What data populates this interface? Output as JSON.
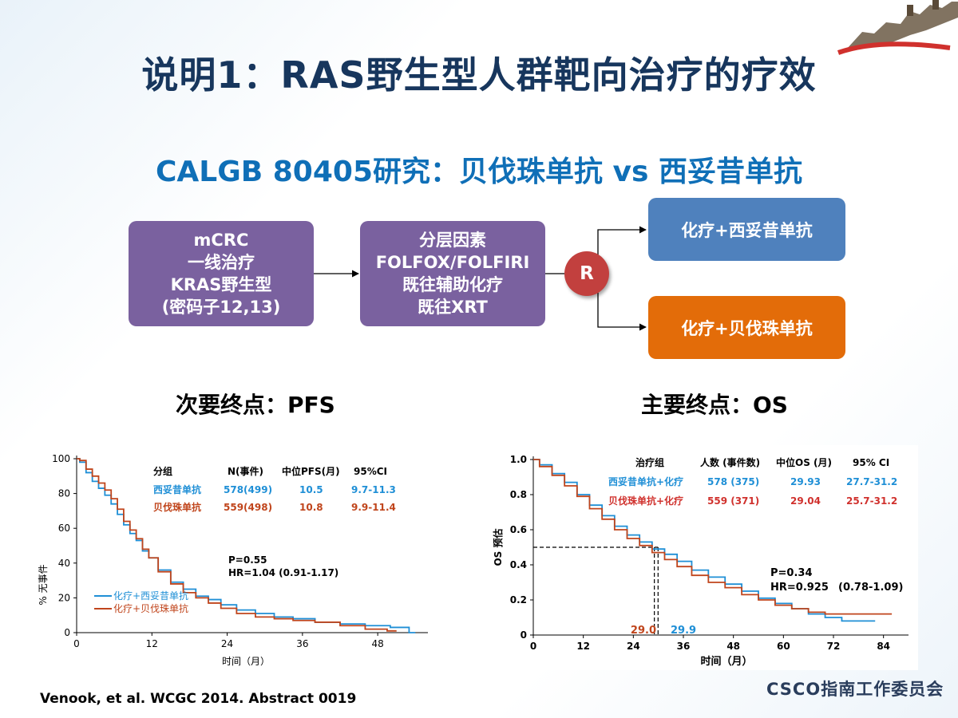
{
  "slide": {
    "title": "说明1：RAS野生型人群靶向治疗的疗效",
    "subtitle": "CALGB 80405研究：贝伐珠单抗 vs 西妥昔单抗",
    "citation": "Venook, et al. WCGC 2014. Abstract 0019",
    "footer_org": "CSCO指南工作委员会"
  },
  "flow": {
    "box1_lines": [
      "mCRC",
      "一线治疗",
      "KRAS野生型",
      "(密码子12,13)"
    ],
    "box2_lines": [
      "分层因素",
      "FOLFOX/FOLFIRI",
      "既往辅助化疗",
      "既往XRT"
    ],
    "randomize": "R",
    "arm1": "化疗+西妥昔单抗",
    "arm2": "化疗+贝伐珠单抗"
  },
  "colors": {
    "purple": "#7a619f",
    "blue_box": "#4f81bd",
    "orange_box": "#e36c09",
    "blue_line": "#1f8fd6",
    "red_line": "#c0451c",
    "title": "#17365d",
    "subtitle": "#0f6fb7"
  },
  "chart_data": [
    {
      "type": "line",
      "heading": "次要终点：PFS",
      "ylabel": "% 无事件",
      "xlabel": "时间（月）",
      "xlim": [
        0,
        56
      ],
      "ylim": [
        0,
        100
      ],
      "x_ticks": [
        0,
        12,
        24,
        36,
        48
      ],
      "y_ticks": [
        0,
        20,
        40,
        60,
        80,
        100
      ],
      "table": {
        "headers": [
          "分组",
          "N(事件)",
          "中位PFS(月)",
          "95%CI"
        ],
        "rows": [
          [
            "西妥昔单抗",
            "578(499)",
            "10.5",
            "9.7-11.3"
          ],
          [
            "贝伐珠单抗",
            "559(498)",
            "10.8",
            "9.9-11.4"
          ]
        ]
      },
      "stats": [
        "P=0.55",
        "HR=1.04 (0.91-1.17)"
      ],
      "series": [
        {
          "name": "化疗+西妥昔单抗",
          "x": [
            0,
            1,
            2,
            3,
            4,
            5,
            6,
            7,
            8,
            9,
            10,
            11,
            12,
            14,
            16,
            18,
            20,
            22,
            24,
            27,
            30,
            33,
            36,
            40,
            44,
            48,
            52,
            54
          ],
          "y": [
            100,
            98,
            92,
            87,
            83,
            79,
            74,
            68,
            62,
            57,
            53,
            47,
            43,
            36,
            29,
            25,
            21,
            19,
            16,
            13,
            11,
            9,
            8,
            6,
            5,
            4,
            3,
            0
          ]
        },
        {
          "name": "化疗+贝伐珠单抗",
          "x": [
            0,
            1,
            2,
            3,
            4,
            5,
            6,
            7,
            8,
            9,
            10,
            11,
            12,
            14,
            16,
            18,
            20,
            22,
            24,
            27,
            30,
            33,
            36,
            40,
            44,
            48,
            51
          ],
          "y": [
            100,
            99,
            94,
            90,
            86,
            82,
            77,
            71,
            64,
            59,
            54,
            48,
            43,
            35,
            28,
            23,
            20,
            17,
            14,
            11,
            9,
            8,
            7,
            6,
            4,
            2,
            1
          ]
        }
      ]
    },
    {
      "type": "line",
      "heading": "主要终点：OS",
      "ylabel": "OS 预估",
      "xlabel": "时间（月）",
      "xlim": [
        0,
        90
      ],
      "ylim": [
        0,
        1.0
      ],
      "x_ticks": [
        0,
        12,
        24,
        36,
        48,
        60,
        72,
        84
      ],
      "y_ticks": [
        0,
        0.2,
        0.4,
        0.6,
        0.8,
        1.0
      ],
      "table": {
        "headers": [
          "治疗组",
          "人数 (事件数)",
          "中位OS (月)",
          "95% CI"
        ],
        "rows": [
          [
            "西妥昔单抗+化疗",
            "578 (375)",
            "29.93",
            "27.7-31.2"
          ],
          [
            "贝伐珠单抗+化疗",
            "559 (371)",
            "29.04",
            "25.7-31.2"
          ]
        ]
      },
      "stats": [
        "P=0.34",
        "HR=0.925",
        "(0.78-1.09)"
      ],
      "median_labels": [
        "29.0",
        "29.9"
      ],
      "medians": [
        29.04,
        29.93
      ],
      "series": [
        {
          "name": "西妥昔单抗+化疗",
          "x": [
            0,
            3,
            6,
            9,
            12,
            15,
            18,
            21,
            24,
            27,
            30,
            33,
            36,
            40,
            44,
            48,
            52,
            56,
            60,
            64,
            68,
            72,
            76,
            82
          ],
          "y": [
            1.0,
            0.97,
            0.92,
            0.87,
            0.8,
            0.74,
            0.68,
            0.62,
            0.57,
            0.53,
            0.49,
            0.46,
            0.42,
            0.37,
            0.33,
            0.29,
            0.25,
            0.21,
            0.18,
            0.15,
            0.12,
            0.1,
            0.08,
            0.08
          ]
        },
        {
          "name": "贝伐珠单抗+化疗",
          "x": [
            0,
            3,
            6,
            9,
            12,
            15,
            18,
            21,
            24,
            27,
            30,
            33,
            36,
            40,
            44,
            48,
            52,
            56,
            60,
            64,
            68,
            72,
            80,
            86
          ],
          "y": [
            1.0,
            0.96,
            0.91,
            0.85,
            0.79,
            0.72,
            0.66,
            0.6,
            0.55,
            0.51,
            0.47,
            0.43,
            0.39,
            0.34,
            0.3,
            0.27,
            0.23,
            0.2,
            0.17,
            0.15,
            0.13,
            0.12,
            0.12,
            0.12
          ]
        }
      ]
    }
  ]
}
